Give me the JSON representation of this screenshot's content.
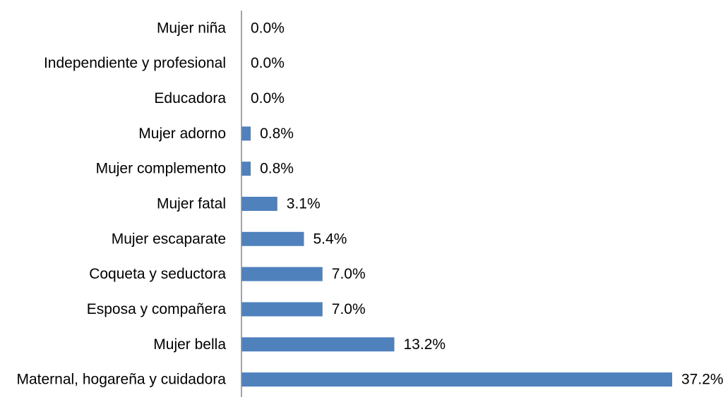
{
  "chart_data": {
    "type": "bar",
    "orientation": "horizontal",
    "categories": [
      "Mujer niña",
      "Independiente y profesional",
      "Educadora",
      "Mujer adorno",
      "Mujer complemento",
      "Mujer fatal",
      "Mujer escaparate",
      "Coqueta y seductora",
      "Esposa y compañera",
      "Mujer bella",
      "Maternal, hogareña y cuidadora"
    ],
    "values": [
      0.0,
      0.0,
      0.0,
      0.8,
      0.8,
      3.1,
      5.4,
      7.0,
      7.0,
      13.2,
      37.2
    ],
    "value_labels": [
      "0.0%",
      "0.0%",
      "0.0%",
      "0.8%",
      "0.8%",
      "3.1%",
      "5.4%",
      "7.0%",
      "7.0%",
      "13.2%",
      "37.2%"
    ],
    "unit": "%",
    "xlim": [
      0,
      37.2
    ],
    "grid": false,
    "legend": "none",
    "bar_color": "#4F81BD",
    "axis_color": "#868686"
  }
}
